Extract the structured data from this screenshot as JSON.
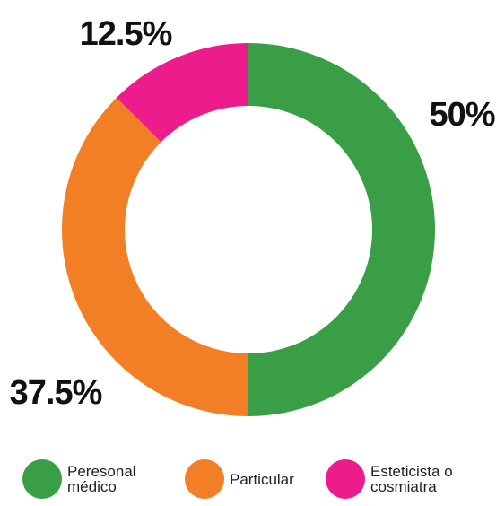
{
  "chart_data": {
    "type": "donut",
    "categories": [
      "Peresonal médico",
      "Particular",
      "Esteticista o cosmiatra"
    ],
    "values": [
      50,
      37.5,
      12.5
    ],
    "value_labels": [
      "50%",
      "37.5%",
      "12.5%"
    ],
    "colors": [
      "#3a9e47",
      "#f27f25",
      "#ec1c8c"
    ],
    "legend": "bottom"
  }
}
